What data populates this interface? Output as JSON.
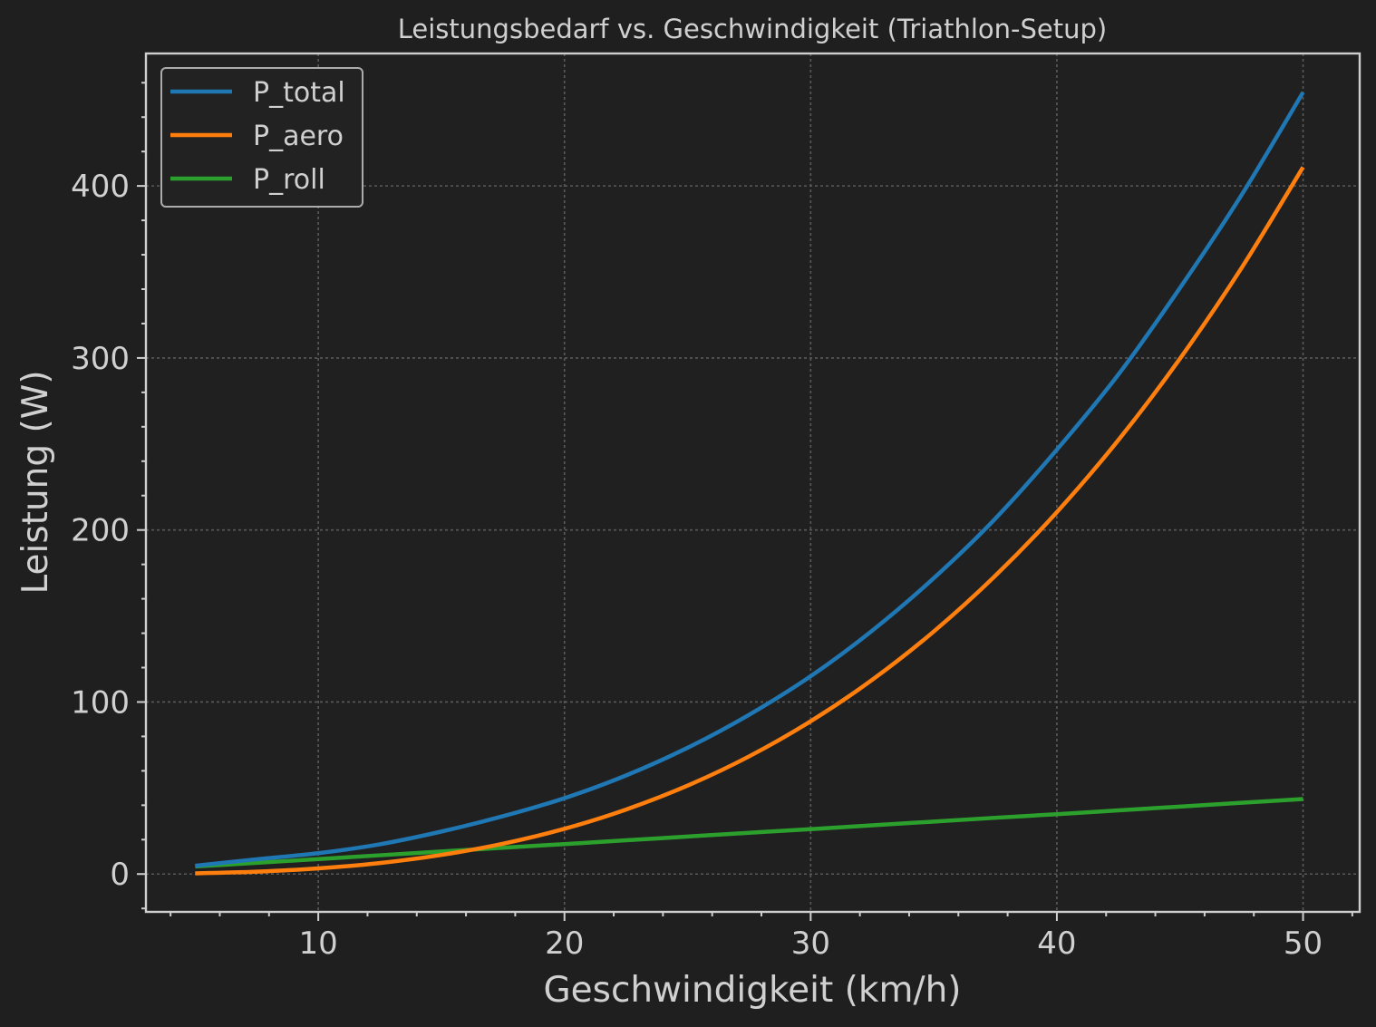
{
  "chart_data": {
    "type": "line",
    "title": "Leistungsbedarf vs. Geschwindigkeit (Triathlon-Setup)",
    "xlabel": "Geschwindigkeit (km/h)",
    "ylabel": "Leistung (W)",
    "xlim": [
      3,
      52.3
    ],
    "ylim": [
      -22,
      477
    ],
    "x_ticks": [
      10,
      20,
      30,
      40,
      50
    ],
    "y_ticks": [
      0,
      100,
      200,
      300,
      400
    ],
    "x_minor_step": 2,
    "y_minor_step": 20,
    "grid": true,
    "legend_position": "top-left",
    "x": [
      5,
      7.5,
      10,
      12.5,
      15,
      17.5,
      20,
      22.5,
      25,
      27.5,
      30,
      32.5,
      35,
      37.5,
      40,
      42.5,
      45,
      47.5,
      50
    ],
    "series": [
      {
        "name": "P_total",
        "color": "#1f77b4",
        "values": [
          4.8,
          8.6,
          12.1,
          17.3,
          24.7,
          33.6,
          44.1,
          57.3,
          73.4,
          92.6,
          115.0,
          141.5,
          172.0,
          206.6,
          246.7,
          290.4,
          340.7,
          394.7,
          454.4
        ]
      },
      {
        "name": "P_aero",
        "color": "#ff7f0e",
        "values": [
          0.4,
          1.4,
          3.3,
          6.4,
          11.1,
          17.6,
          26.3,
          37.5,
          51.4,
          68.4,
          88.8,
          112.9,
          141.0,
          173.4,
          210.4,
          252.3,
          299.6,
          352.3,
          410.9
        ]
      },
      {
        "name": "P_roll",
        "color": "#2ca02c",
        "values": [
          4.4,
          6.5,
          8.7,
          10.9,
          13.1,
          15.3,
          17.4,
          19.6,
          21.8,
          24.0,
          26.1,
          28.3,
          30.5,
          32.7,
          34.8,
          37.0,
          39.2,
          41.4,
          43.6
        ]
      }
    ]
  }
}
